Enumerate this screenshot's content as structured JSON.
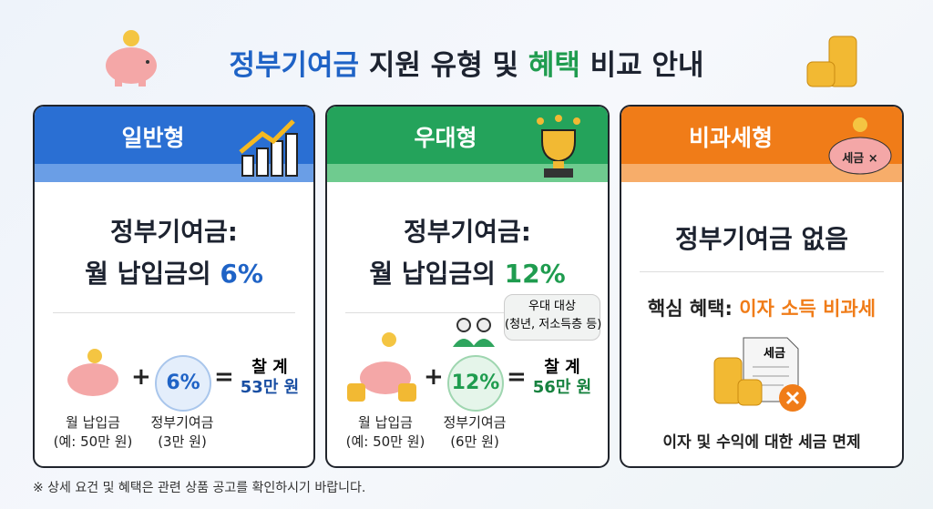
{
  "title": {
    "parts": [
      "정부기여금",
      " 지원 유형 및 ",
      "혜택",
      " 비교 안내"
    ]
  },
  "cards": [
    {
      "name": "일반형",
      "headline": [
        "정부기여금:",
        "월 납입금의 ",
        "6%"
      ],
      "plus": "+",
      "rate": "6%",
      "equals": "=",
      "total": [
        "찰 계",
        "53만 원"
      ],
      "left_label": [
        "월 납입금",
        "(예: 50만 원)"
      ],
      "rate_label": [
        "정부기여금",
        "(3만 원)"
      ]
    },
    {
      "name": "우대형",
      "headline": [
        "정부기여금:",
        "월 납입금의 ",
        "12%"
      ],
      "bubble": [
        "우대 대상",
        "(청년, 저소득층 등)"
      ],
      "plus": "+",
      "rate": "12%",
      "equals": "=",
      "total": [
        "찰 계",
        "56만 원"
      ],
      "left_label": [
        "월 납입금",
        "(예: 50만 원)"
      ],
      "rate_label": [
        "정부기여금",
        "(6만 원)"
      ]
    },
    {
      "name": "비과세형",
      "badge": "세금 ×",
      "headline": "정부기여금 없음",
      "benefit": [
        "핵심 혜택: ",
        "이자 소득 비과세"
      ],
      "doc": "세금",
      "bottom": "이자 및 수익에 대한 세금 면제"
    }
  ],
  "footnote": "※ 상세 요건 및 혜택은 관련 상품 공고를 확인하시기 바랍니다."
}
